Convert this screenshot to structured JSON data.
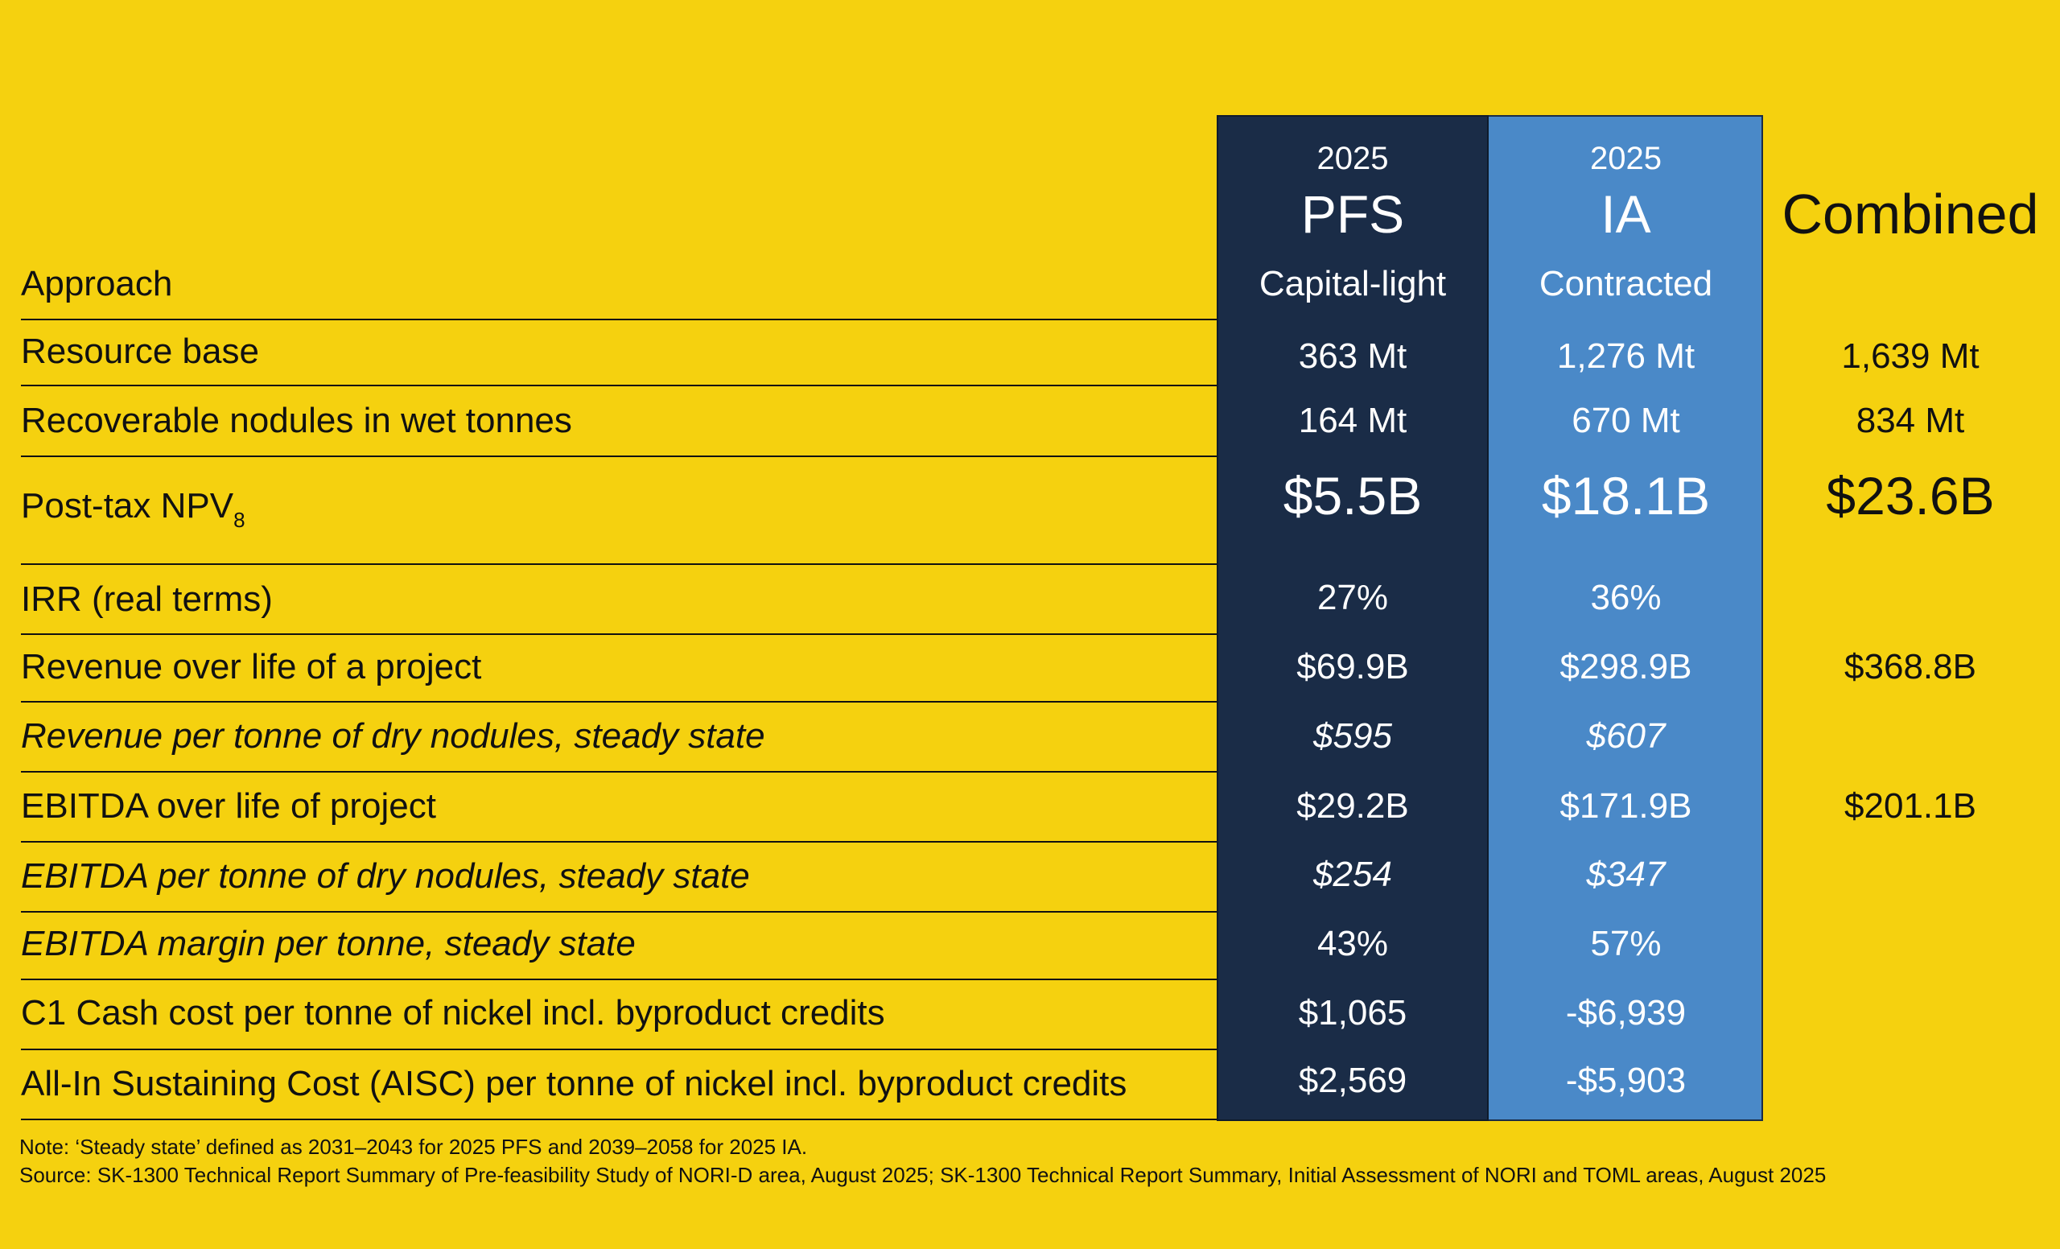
{
  "header": {
    "approach_label": "Approach",
    "pfs": {
      "year": "2025",
      "title": "PFS",
      "approach": "Capital-light"
    },
    "ia": {
      "year": "2025",
      "title": "IA",
      "approach": "Contracted"
    },
    "combined": {
      "title": "Combined"
    }
  },
  "colors": {
    "background": "#F5D10F",
    "pfs_column": "#1A2C47",
    "ia_column": "#4A89C8",
    "text_dark": "#111111",
    "text_light": "#FFFFFF"
  },
  "rows": [
    {
      "label": "Resource base",
      "pfs": "363 Mt",
      "ia": "1,276 Mt",
      "combined": "1,639 Mt",
      "italic": false
    },
    {
      "label": "Recoverable nodules in wet tonnes",
      "pfs": "164 Mt",
      "ia": "670 Mt",
      "combined": "834 Mt",
      "italic": false
    },
    {
      "label": "Post-tax NPV",
      "label_sub": "8",
      "pfs": "$5.5B",
      "ia": "$18.1B",
      "combined": "$23.6B",
      "italic": false
    },
    {
      "label": "IRR (real terms)",
      "pfs": "27%",
      "ia": "36%",
      "combined": "",
      "italic": false
    },
    {
      "label": "Revenue over life of a project",
      "pfs": "$69.9B",
      "ia": "$298.9B",
      "combined": "$368.8B",
      "italic": false
    },
    {
      "label": "Revenue per tonne of dry nodules, steady state",
      "pfs": "$595",
      "ia": "$607",
      "combined": "",
      "italic": true
    },
    {
      "label": "EBITDA over life of project",
      "pfs": "$29.2B",
      "ia": "$171.9B",
      "combined": "$201.1B",
      "italic": false
    },
    {
      "label": "EBITDA per tonne of dry nodules, steady state",
      "pfs": "$254",
      "ia": "$347",
      "combined": "",
      "italic": true
    },
    {
      "label": "EBITDA margin per tonne, steady state",
      "pfs": "43%",
      "ia": "57%",
      "combined": "",
      "italic": true
    },
    {
      "label": "C1 Cash cost per tonne of nickel incl. byproduct credits",
      "pfs": "$1,065",
      "ia": "-$6,939",
      "combined": "",
      "italic": false
    },
    {
      "label": "All-In Sustaining Cost (AISC) per tonne of nickel incl. byproduct credits",
      "pfs": "$2,569",
      "ia": "-$5,903",
      "combined": "",
      "italic": false
    }
  ],
  "notes": {
    "note": "Note: ‘Steady state’ defined as 2031–2043 for 2025 PFS and 2039–2058 for 2025 IA.",
    "source": "Source: SK-1300 Technical Report Summary of Pre-feasibility Study of NORI-D area, August 2025; SK-1300 Technical Report Summary, Initial Assessment of NORI and TOML areas, August 2025"
  }
}
